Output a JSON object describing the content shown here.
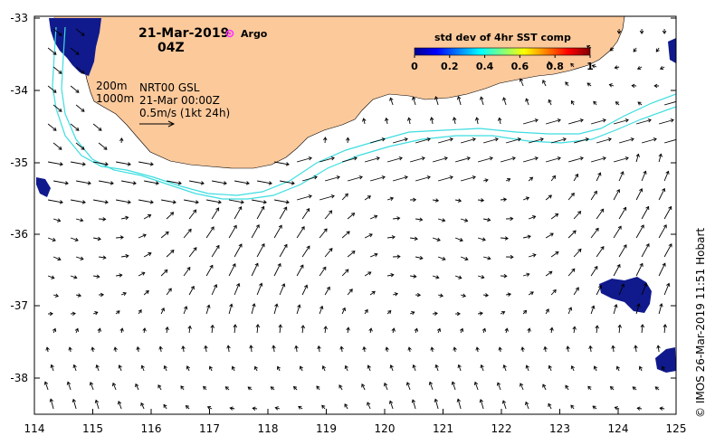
{
  "map": {
    "date": "21-Mar-2019",
    "time": "04Z",
    "argo_label": "Argo",
    "colorbar": {
      "title": "std dev of 4hr SST comp",
      "ticks": [
        "0",
        "0.2",
        "0.4",
        "0.6",
        "0.8",
        "1"
      ]
    },
    "isobaths": {
      "shallow": "200m",
      "deep": "1000m"
    },
    "product": "NRT00 GSL",
    "product_date": "21-Mar 00:00Z",
    "scale_label": "0.5m/s (1kt 24h)",
    "credit": "© IMOS 26-Mar-2019 11:51 Hobart",
    "x_ticks": [
      "114",
      "115",
      "116",
      "117",
      "118",
      "119",
      "120",
      "121",
      "122",
      "123",
      "124",
      "125"
    ],
    "y_ticks": [
      "-33",
      "-34",
      "-35",
      "-36",
      "-37",
      "-38"
    ],
    "colors": {
      "land": "#fcc99b",
      "isobath": "#3ddde0",
      "argo": "#ff33ff",
      "sst_patch": "#101a8c"
    }
  }
}
